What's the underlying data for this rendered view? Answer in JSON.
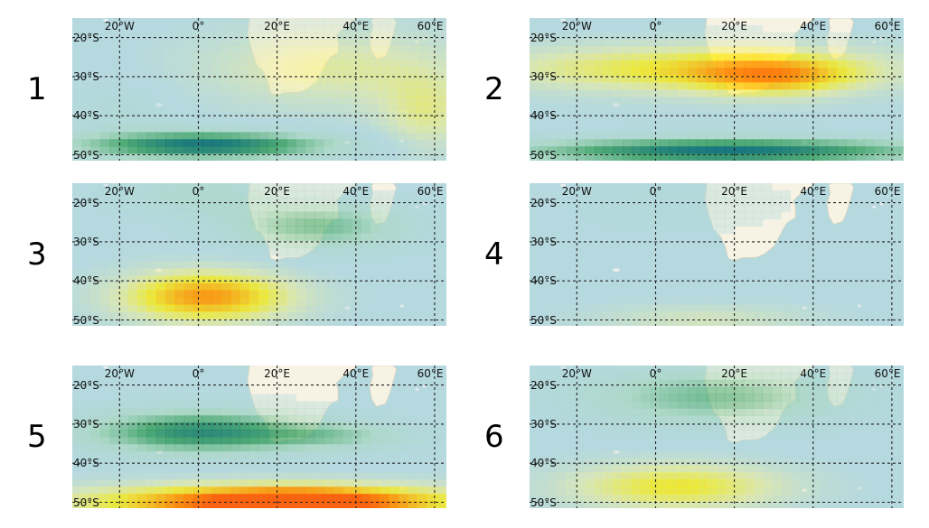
{
  "colors": {
    "ocean": "#b5d9df",
    "land": "#f6f2e4",
    "positive_low": "#f3f09a",
    "positive_mid": "#ffee00",
    "positive_high": "#ff9a00",
    "positive_max": "#ff5a00",
    "negative_low": "#a8d8b8",
    "negative_mid": "#2e9a55",
    "negative_high": "#0e6f78",
    "grid": "#222222"
  },
  "axis": {
    "lon_min": -32,
    "lon_max": 63,
    "lat_min": -51.5,
    "lat_max": -15,
    "lon_ticks": [
      {
        "value": -20,
        "label": "20°W"
      },
      {
        "value": 0,
        "label": "0°"
      },
      {
        "value": 20,
        "label": "20°E"
      },
      {
        "value": 40,
        "label": "40°E"
      },
      {
        "value": 60,
        "label": "60°E"
      }
    ],
    "lat_ticks": [
      {
        "value": -20,
        "label": "20°S"
      },
      {
        "value": -30,
        "label": "30°S"
      },
      {
        "value": -40,
        "label": "40°S"
      },
      {
        "value": -50,
        "label": "50°S"
      }
    ]
  },
  "panels": [
    {
      "number": "1",
      "anomalies": [
        {
          "lon": 35,
          "lat": -28,
          "rlon": 35,
          "rlat": 10,
          "amp": 0.35
        },
        {
          "lon": 58,
          "lat": -40,
          "rlon": 12,
          "rlat": 10,
          "amp": 0.35
        },
        {
          "lon": 2,
          "lat": -47.5,
          "rlon": 32,
          "rlat": 3.5,
          "amp": -1.0
        },
        {
          "lon": -20,
          "lat": -38,
          "rlon": 15,
          "rlat": 8,
          "amp": -0.12
        }
      ]
    },
    {
      "number": "2",
      "anomalies": [
        {
          "lon": 10,
          "lat": -28,
          "rlon": 52,
          "rlat": 6,
          "amp": 0.6
        },
        {
          "lon": 30,
          "lat": -30,
          "rlon": 20,
          "rlat": 5,
          "amp": 0.55
        },
        {
          "lon": 18,
          "lat": -49,
          "rlon": 52,
          "rlat": 3.3,
          "amp": -1.0
        }
      ]
    },
    {
      "number": "3",
      "anomalies": [
        {
          "lon": 2,
          "lat": -44,
          "rlon": 22,
          "rlat": 6.5,
          "amp": 0.9
        },
        {
          "lon": 30,
          "lat": -26,
          "rlon": 22,
          "rlat": 6,
          "amp": -0.55
        },
        {
          "lon": 0,
          "lat": -18,
          "rlon": 20,
          "rlat": 5,
          "amp": -0.25
        }
      ]
    },
    {
      "number": "4",
      "anomalies": [
        {
          "lon": 12,
          "lat": -50,
          "rlon": 28,
          "rlat": 4,
          "amp": 0.25
        },
        {
          "lon": 5,
          "lat": -20,
          "rlon": 30,
          "rlat": 8,
          "amp": -0.08
        }
      ]
    },
    {
      "number": "5",
      "anomalies": [
        {
          "lon": 20,
          "lat": -50,
          "rlon": 50,
          "rlat": 4.5,
          "amp": 1.15
        },
        {
          "lon": 25,
          "lat": -50,
          "rlon": 22,
          "rlat": 3,
          "amp": 0.5
        },
        {
          "lon": 0,
          "lat": -32,
          "rlon": 28,
          "rlat": 5.5,
          "amp": -0.85
        },
        {
          "lon": 35,
          "lat": -33,
          "rlon": 20,
          "rlat": 3.5,
          "amp": -0.35
        }
      ]
    },
    {
      "number": "6",
      "anomalies": [
        {
          "lon": 5,
          "lat": -46,
          "rlon": 28,
          "rlat": 6,
          "amp": 0.6
        },
        {
          "lon": 15,
          "lat": -23,
          "rlon": 32,
          "rlat": 7,
          "amp": -0.55
        }
      ]
    }
  ]
}
